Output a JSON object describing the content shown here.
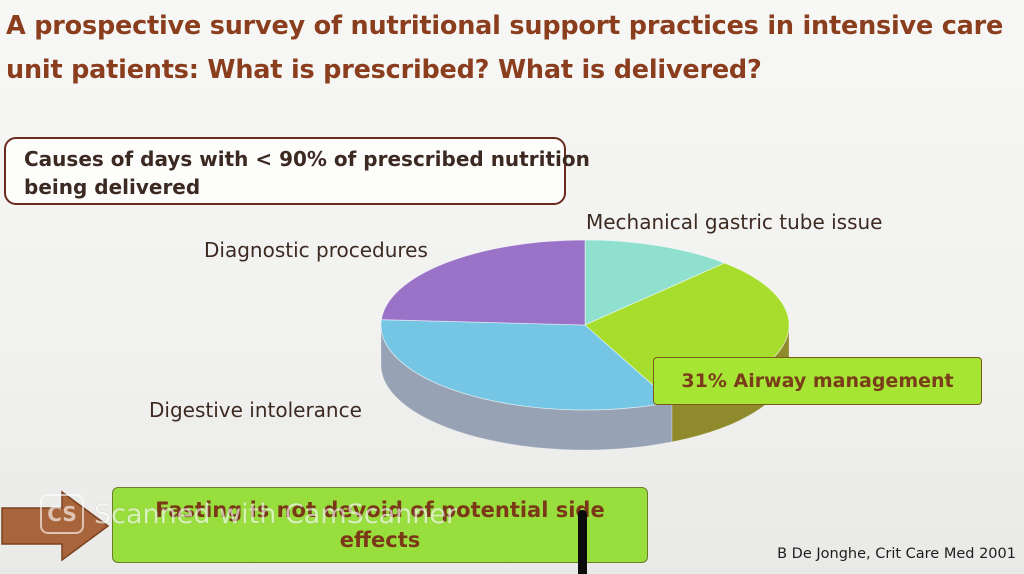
{
  "slide": {
    "title_lines": [
      "A prospective survey of nutritional support practices in intensive care",
      "unit patients: What is prescribed? What is delivered?"
    ],
    "causes_box_lines": [
      "Causes of days with < 90% of prescribed nutrition",
      "being delivered"
    ],
    "callout": "31% Airway management",
    "fasting_lines": [
      "Fasting is not devoid of potential side",
      "effects"
    ],
    "citation": "B De Jonghe, Crit Care Med 2001",
    "watermark": {
      "logo": "CS",
      "text": "Scanned with CamScanner"
    }
  },
  "colors": {
    "title": "#8a3e1e",
    "box_border": "#6b2a1f",
    "callout_fill": "#a6e534",
    "fasting_fill": "#98de3c",
    "arrow": "#a8643a"
  },
  "chart_data": {
    "type": "pie",
    "title": "",
    "style": "3d",
    "start_angle_deg": 0,
    "direction": "clockwise",
    "slices": [
      {
        "label": "Mechanical gastric tube issue",
        "value": 12,
        "color": "#8fe0cf",
        "side": "#5fa89a"
      },
      {
        "label": "Airway management",
        "value": 31,
        "color": "#a7dd2c",
        "side": "#8f8a2c",
        "printed_value": "31%"
      },
      {
        "label": "Digestive intolerance",
        "value": 33,
        "color": "#74c6e4",
        "side": "#97a3b4"
      },
      {
        "label": "Diagnostic procedures",
        "value": 24,
        "color": "#9a73c8",
        "side": "#7b5aa3"
      }
    ]
  }
}
